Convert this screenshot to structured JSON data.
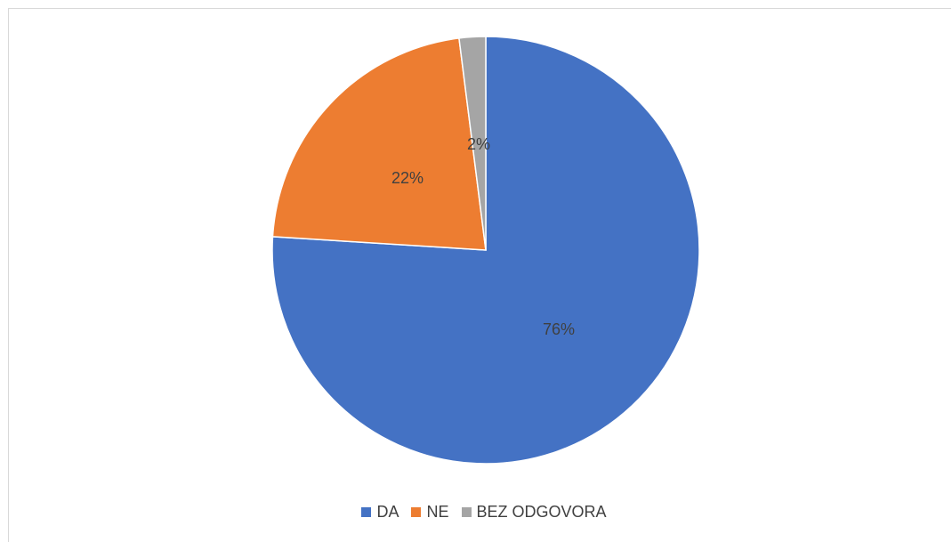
{
  "chart_data": {
    "type": "pie",
    "title": "",
    "start_angle_deg": 0,
    "direction": "clockwise",
    "slices": [
      {
        "label": "DA",
        "value": 76,
        "display": "76%",
        "color": "#4472C4"
      },
      {
        "label": "NE",
        "value": 22,
        "display": "22%",
        "color": "#ED7D31"
      },
      {
        "label": "BEZ ODGOVORA",
        "value": 2,
        "display": "2%",
        "color": "#A5A5A5"
      }
    ],
    "legend": {
      "placement": "bottom",
      "entries": [
        "DA",
        "NE",
        "BEZ ODGOVORA"
      ]
    },
    "data_labels": true
  }
}
